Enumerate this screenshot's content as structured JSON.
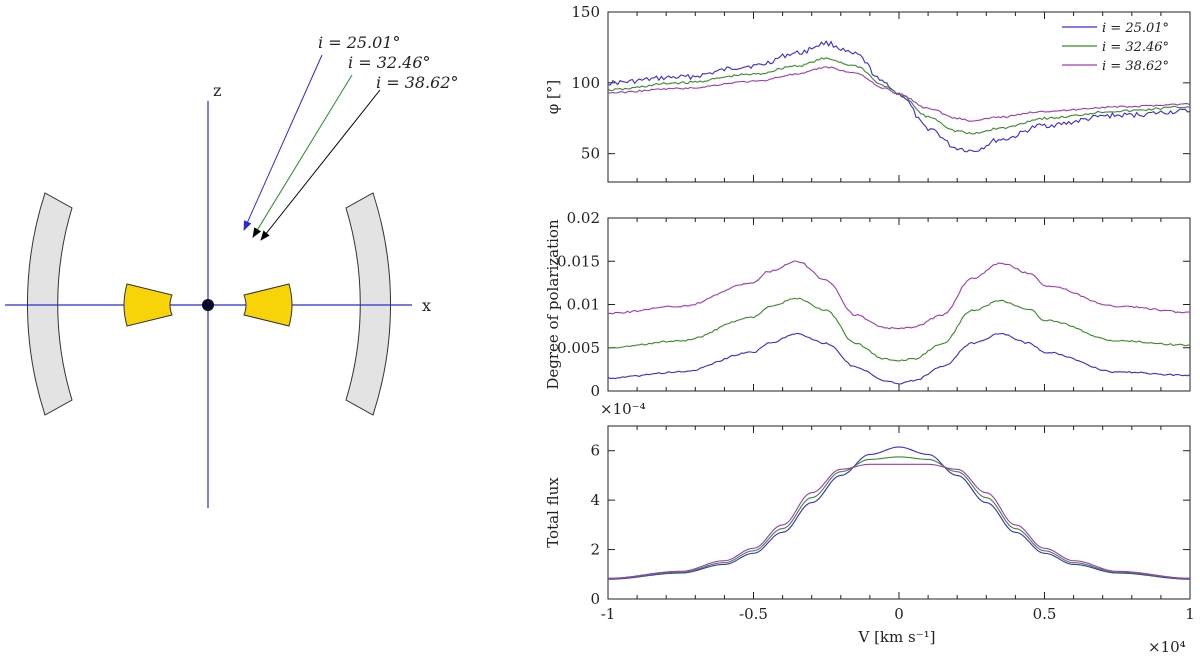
{
  "diagram": {
    "axis_x_label": "x",
    "axis_z_label": "z",
    "colors": {
      "axis": "#2b2bd6",
      "torus": "#f7d308",
      "shell": "#e3e3e3",
      "arrow_black": "#000000",
      "arrow_blue": "#2b2bd6",
      "arrow_green": "#2a8a2a"
    },
    "arrows": [
      {
        "label": "i = 25.01°",
        "color": "#2b2bd6"
      },
      {
        "label": "i = 32.46°",
        "color": "#2a8a2a"
      },
      {
        "label": "i = 38.62°",
        "color": "#000000"
      }
    ]
  },
  "chart_data": [
    {
      "type": "line",
      "title": "",
      "xlabel": "",
      "ylabel": "φ [°]",
      "xlim": [
        -1,
        1
      ],
      "ylim": [
        30,
        150
      ],
      "yticks": [
        50,
        100,
        150
      ],
      "legend_position": "top-right",
      "series": [
        {
          "name": "i = 25.01°",
          "color": "#3a2bd4",
          "x": [
            -1,
            -0.75,
            -0.5,
            -0.35,
            -0.25,
            -0.15,
            -0.05,
            0,
            0.1,
            0.2,
            0.25,
            0.35,
            0.5,
            0.75,
            1
          ],
          "y": [
            100,
            104,
            112,
            121,
            128,
            120,
            100,
            92,
            68,
            54,
            52,
            60,
            70,
            77,
            80
          ]
        },
        {
          "name": "i = 32.46°",
          "color": "#3a8a2a",
          "x": [
            -1,
            -0.75,
            -0.5,
            -0.35,
            -0.25,
            -0.15,
            -0.05,
            0,
            0.1,
            0.2,
            0.25,
            0.35,
            0.5,
            0.75,
            1
          ],
          "y": [
            95,
            100,
            106,
            112,
            117,
            112,
            98,
            92,
            76,
            66,
            64,
            68,
            75,
            80,
            83
          ]
        },
        {
          "name": "i = 38.62°",
          "color": "#a03ab0",
          "x": [
            -1,
            -0.75,
            -0.5,
            -0.35,
            -0.25,
            -0.15,
            -0.05,
            0,
            0.1,
            0.2,
            0.25,
            0.35,
            0.5,
            0.75,
            1
          ],
          "y": [
            93,
            96,
            101,
            106,
            111,
            107,
            96,
            92,
            82,
            75,
            73,
            76,
            80,
            83,
            85
          ]
        }
      ]
    },
    {
      "type": "line",
      "title": "",
      "xlabel": "",
      "ylabel": "Degree of polarization",
      "xlim": [
        -1,
        1
      ],
      "ylim": [
        0,
        0.02
      ],
      "yticks": [
        0,
        0.005,
        0.01,
        0.015,
        0.02
      ],
      "ytick_labels": [
        "0",
        "0.005",
        "0.01",
        "0.015",
        "0.02"
      ],
      "series": [
        {
          "name": "i = 25.01°",
          "color": "#3a2bd4",
          "x": [
            -1,
            -0.75,
            -0.5,
            -0.45,
            -0.35,
            -0.25,
            -0.15,
            -0.05,
            0,
            0.05,
            0.15,
            0.25,
            0.35,
            0.45,
            0.5,
            0.75,
            1
          ],
          "y": [
            0.0015,
            0.0022,
            0.0045,
            0.0055,
            0.0066,
            0.0055,
            0.0028,
            0.0012,
            0.0009,
            0.0012,
            0.0028,
            0.0055,
            0.0066,
            0.0055,
            0.0045,
            0.0022,
            0.0018
          ]
        },
        {
          "name": "i = 32.46°",
          "color": "#3a8a2a",
          "x": [
            -1,
            -0.75,
            -0.5,
            -0.45,
            -0.35,
            -0.25,
            -0.15,
            -0.05,
            0,
            0.05,
            0.15,
            0.25,
            0.35,
            0.45,
            0.5,
            0.75,
            1
          ],
          "y": [
            0.005,
            0.0058,
            0.0085,
            0.0097,
            0.0107,
            0.0093,
            0.0055,
            0.0037,
            0.0035,
            0.0037,
            0.0055,
            0.0093,
            0.0104,
            0.0094,
            0.0082,
            0.0058,
            0.0053
          ]
        },
        {
          "name": "i = 38.62°",
          "color": "#a03ab0",
          "x": [
            -1,
            -0.75,
            -0.5,
            -0.45,
            -0.35,
            -0.25,
            -0.15,
            -0.05,
            0,
            0.05,
            0.15,
            0.25,
            0.35,
            0.45,
            0.5,
            0.75,
            1
          ],
          "y": [
            0.009,
            0.0098,
            0.0125,
            0.0138,
            0.015,
            0.0128,
            0.0088,
            0.0073,
            0.0072,
            0.0074,
            0.0088,
            0.013,
            0.0148,
            0.0136,
            0.0122,
            0.0098,
            0.0091
          ]
        }
      ]
    },
    {
      "type": "line",
      "title": "",
      "xlabel": "V [km s⁻¹]",
      "ylabel": "Total flux",
      "x_multiplier": "×10⁴",
      "y_multiplier": "×10⁻⁴",
      "xlim": [
        -1,
        1
      ],
      "ylim": [
        0,
        7
      ],
      "xticks": [
        -1,
        -0.5,
        0,
        0.5,
        1
      ],
      "xtick_labels": [
        "-1",
        "-0.5",
        "0",
        "0.5",
        "1"
      ],
      "yticks": [
        0,
        2,
        4,
        6
      ],
      "series": [
        {
          "name": "i = 25.01°",
          "color": "#3a2bd4",
          "x": [
            -1,
            -0.75,
            -0.6,
            -0.5,
            -0.4,
            -0.3,
            -0.2,
            -0.1,
            0,
            0.1,
            0.2,
            0.3,
            0.4,
            0.5,
            0.6,
            0.75,
            1
          ],
          "y": [
            0.8,
            1.05,
            1.4,
            1.85,
            2.7,
            3.9,
            5.0,
            5.85,
            6.15,
            5.85,
            5.0,
            3.9,
            2.7,
            1.85,
            1.4,
            1.05,
            0.8
          ]
        },
        {
          "name": "i = 32.46°",
          "color": "#3a8a2a",
          "x": [
            -1,
            -0.75,
            -0.6,
            -0.5,
            -0.4,
            -0.3,
            -0.2,
            -0.1,
            0,
            0.1,
            0.2,
            0.3,
            0.4,
            0.5,
            0.6,
            0.75,
            1
          ],
          "y": [
            0.82,
            1.08,
            1.47,
            1.95,
            2.85,
            4.1,
            5.15,
            5.65,
            5.75,
            5.65,
            5.15,
            4.1,
            2.85,
            1.95,
            1.47,
            1.08,
            0.82
          ]
        },
        {
          "name": "i = 38.62°",
          "color": "#a03ab0",
          "x": [
            -1,
            -0.75,
            -0.6,
            -0.5,
            -0.4,
            -0.3,
            -0.2,
            -0.1,
            0,
            0.1,
            0.2,
            0.3,
            0.4,
            0.5,
            0.6,
            0.75,
            1
          ],
          "y": [
            0.84,
            1.12,
            1.55,
            2.05,
            3.0,
            4.3,
            5.25,
            5.45,
            5.45,
            5.45,
            5.25,
            4.3,
            3.0,
            2.05,
            1.55,
            1.12,
            0.84
          ]
        }
      ]
    }
  ]
}
